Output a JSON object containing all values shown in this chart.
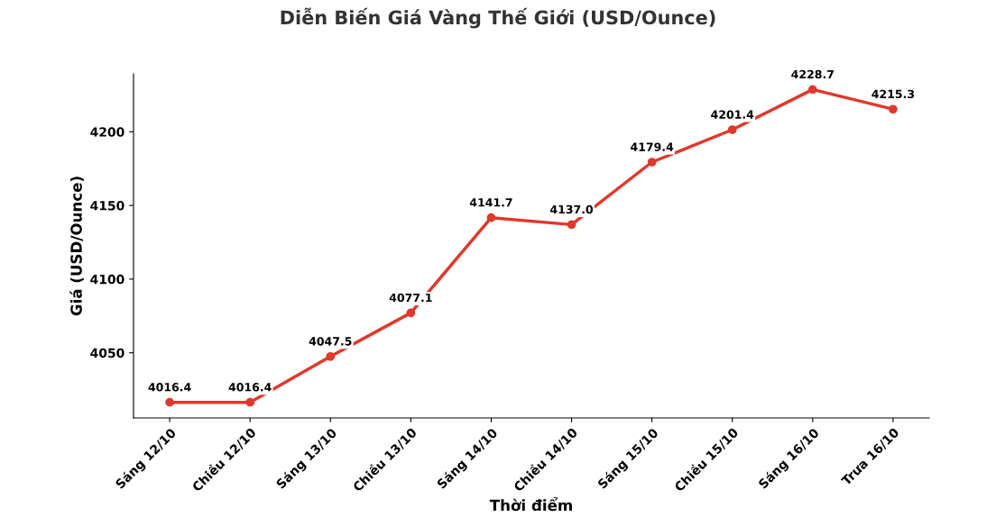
{
  "chart_data": {
    "type": "line",
    "title": "Diễn Biến Giá Vàng Thế Giới (USD/Ounce)",
    "xlabel": "Thời điểm",
    "ylabel": "Giá (USD/Ounce)",
    "categories": [
      "Sáng 12/10",
      "Chiều 12/10",
      "Sáng 13/10",
      "Chiều 13/10",
      "Sáng 14/10",
      "Chiều 14/10",
      "Sáng 15/10",
      "Chiều 15/10",
      "Sáng 16/10",
      "Trưa 16/10"
    ],
    "series": [
      {
        "color": "#e0382b",
        "values": [
          4016.4,
          4016.4,
          4047.5,
          4077.1,
          4141.7,
          4137.0,
          4179.4,
          4201.4,
          4228.7,
          4215.3
        ]
      }
    ],
    "value_labels": [
      "4016.4",
      "4016.4",
      "4047.5",
      "4077.1",
      "4141.7",
      "4137.0",
      "4179.4",
      "4201.4",
      "4228.7",
      "4215.3"
    ],
    "ylim": [
      4005.8,
      4239.3
    ],
    "yticks": [
      4050,
      4100,
      4150,
      4200
    ],
    "marker": "circle",
    "line_style": "solid",
    "grid": false,
    "legend": false
  }
}
